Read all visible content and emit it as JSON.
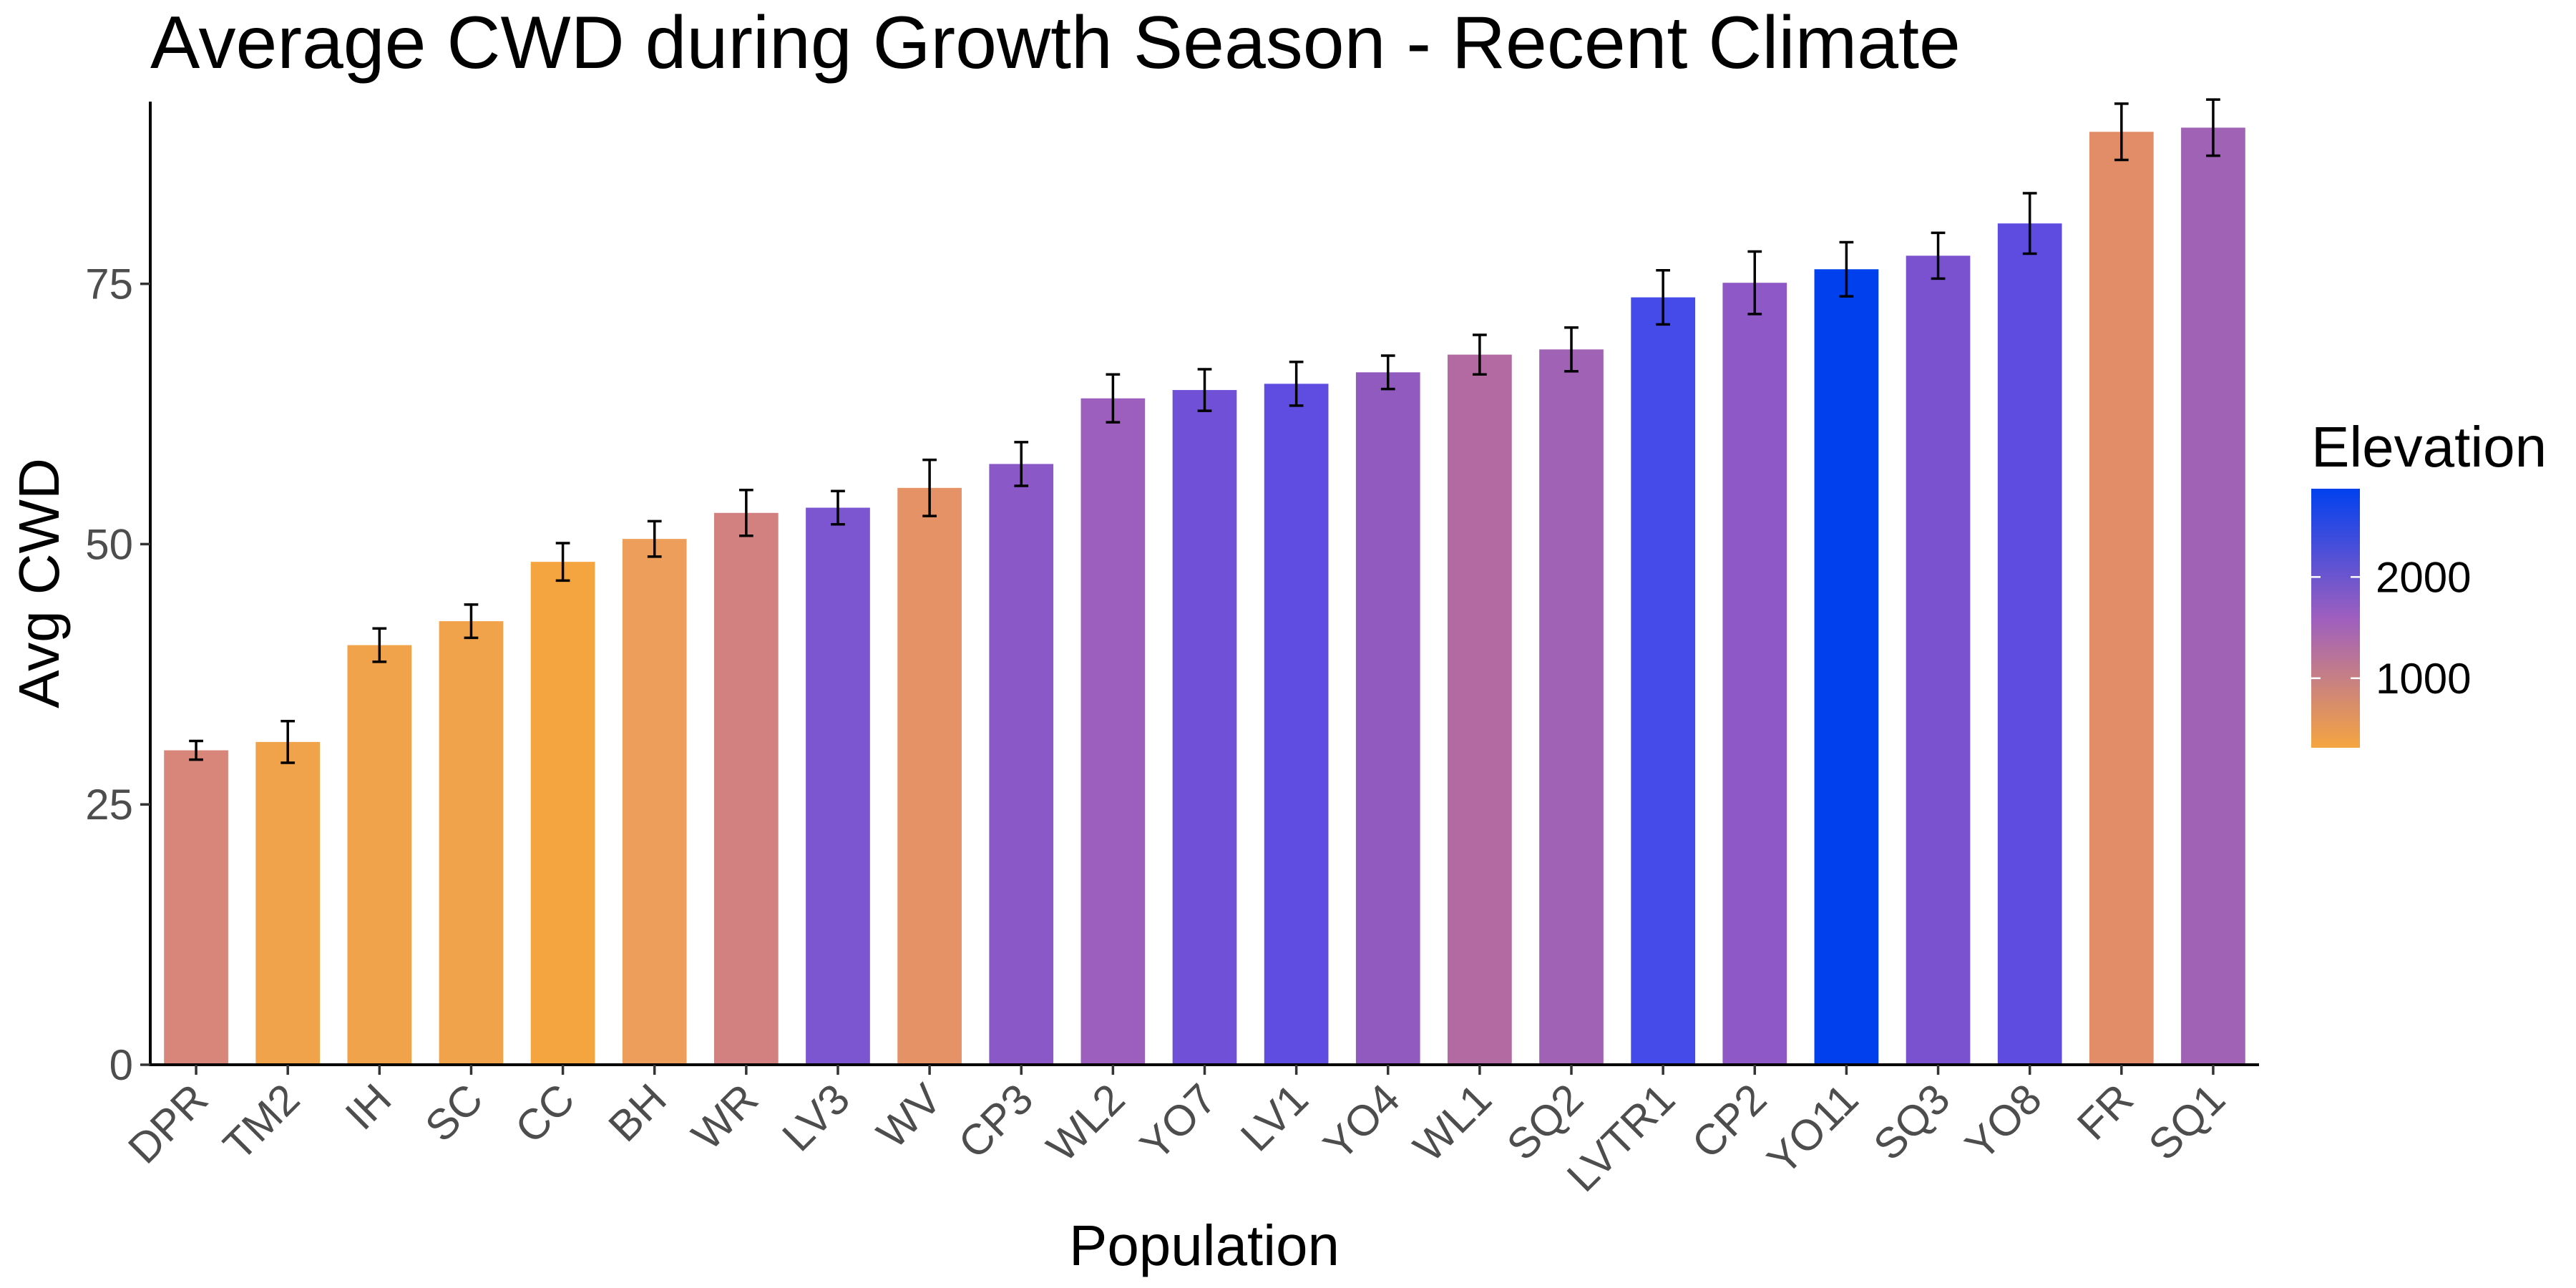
{
  "chart_data": {
    "type": "bar",
    "title": "Average CWD during Growth Season - Recent Climate",
    "xlabel": "Population",
    "ylabel": "Avg CWD",
    "ylim": [
      0,
      92.5
    ],
    "yticks": [
      0,
      25,
      50,
      75
    ],
    "grid": false,
    "legend": {
      "title": "Elevation",
      "position": "right",
      "type": "colorbar",
      "breaks": [
        1000,
        2000
      ],
      "range": [
        313,
        2872
      ],
      "colors": [
        "#f5a540",
        "#9e5fbf",
        "#0041ee"
      ]
    },
    "categories": [
      "DPR",
      "TM2",
      "IH",
      "SC",
      "CC",
      "BH",
      "WR",
      "LV3",
      "WV",
      "CP3",
      "WL2",
      "YO7",
      "LV1",
      "YO4",
      "WL1",
      "SQ2",
      "LVTR1",
      "CP2",
      "YO11",
      "SQ3",
      "YO8",
      "FR",
      "SQ1"
    ],
    "values": [
      30.2,
      31.0,
      40.3,
      42.6,
      48.3,
      50.5,
      53.0,
      53.5,
      55.4,
      57.7,
      64.0,
      64.8,
      65.4,
      66.5,
      68.2,
      68.7,
      73.7,
      75.1,
      76.4,
      77.7,
      80.8,
      89.6,
      90.0
    ],
    "errors": [
      0.9,
      2.0,
      1.6,
      1.6,
      1.8,
      1.7,
      2.2,
      1.6,
      2.7,
      2.1,
      2.3,
      2.0,
      2.1,
      1.6,
      1.9,
      2.1,
      2.6,
      3.0,
      2.6,
      2.2,
      2.9,
      2.7,
      2.7
    ],
    "bar_colors": [
      "#d8857a",
      "#f0a34a",
      "#f0a34a",
      "#f0a34a",
      "#f5a540",
      "#ed9e5a",
      "#d28180",
      "#7c55d0",
      "#e59266",
      "#8b58c8",
      "#9d5fbe",
      "#6f50d7",
      "#5f4ce1",
      "#905abf",
      "#b36aa3",
      "#a062b5",
      "#444be8",
      "#8e58c6",
      "#0041ee",
      "#7a52d0",
      "#5e4ce1",
      "#e28c68",
      "#a062b5"
    ]
  }
}
